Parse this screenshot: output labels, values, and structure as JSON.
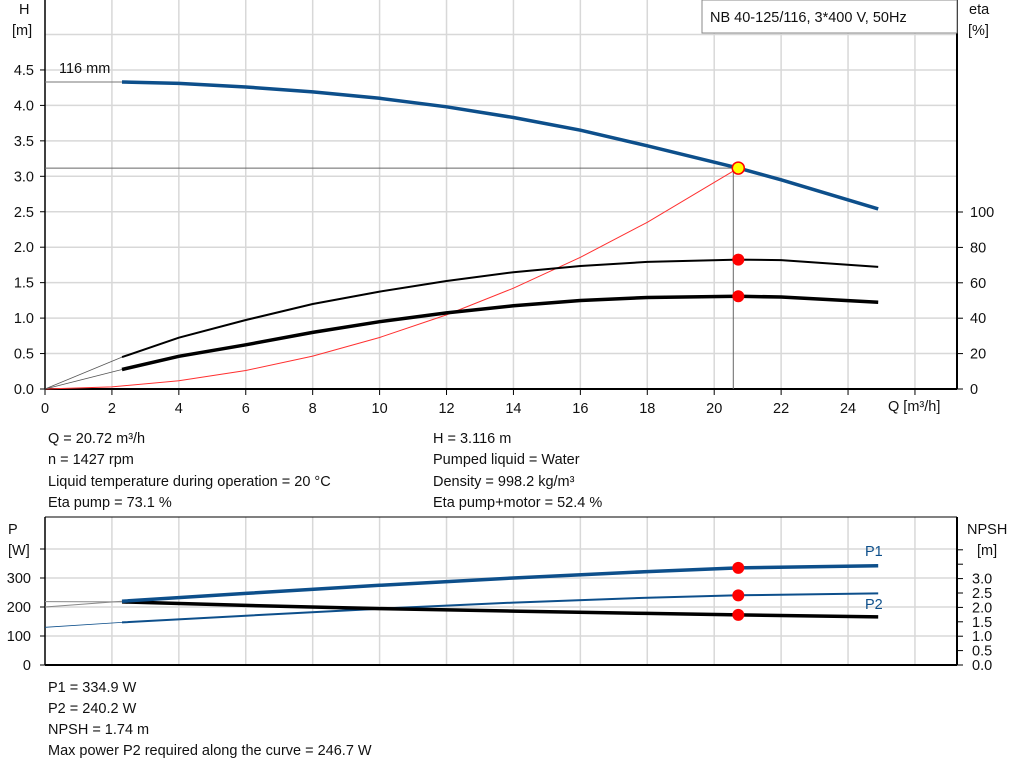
{
  "chart_data": [
    {
      "type": "line",
      "title": "NB 40-125/116, 3*400 V, 50Hz",
      "xlabel": "Q [m³/h]",
      "ylabel": [
        "H",
        "[m]"
      ],
      "y2label": [
        "eta",
        "[%]"
      ],
      "xlim": [
        0,
        27.25
      ],
      "ylim": [
        0,
        5.5
      ],
      "y2lim": [
        0,
        100
      ],
      "xticks": [
        "0",
        "2",
        "4",
        "6",
        "8",
        "10",
        "12",
        "14",
        "16",
        "18",
        "20",
        "22",
        "24"
      ],
      "yticks": [
        "0.0",
        "0.5",
        "1.0",
        "1.5",
        "2.0",
        "2.5",
        "3.0",
        "3.5",
        "4.0",
        "4.5"
      ],
      "y2ticks": [
        "0",
        "20",
        "40",
        "60",
        "80",
        "100"
      ],
      "grid": true,
      "curve_label": "116 mm",
      "series": [
        {
          "key": "H",
          "axis": "left",
          "color": "#0d4f8b",
          "x": [
            2.3,
            4,
            6,
            8,
            10,
            12,
            14,
            16,
            18,
            20.72,
            22,
            24.9
          ],
          "y": [
            4.33,
            4.31,
            4.26,
            4.19,
            4.1,
            3.98,
            3.83,
            3.65,
            3.43,
            3.116,
            2.95,
            2.54
          ],
          "extension_at_zero": 4.33
        },
        {
          "key": "eta_pump",
          "axis": "right",
          "color": "#000000",
          "x": [
            2.3,
            4,
            6,
            8,
            10,
            12,
            14,
            16,
            18,
            20.72,
            22,
            24.9
          ],
          "y": [
            18,
            29,
            39,
            48,
            55,
            61,
            66,
            69.5,
            71.8,
            73.1,
            72.8,
            69
          ]
        },
        {
          "key": "eta_pump_motor",
          "axis": "right",
          "color": "#000000",
          "x": [
            2.3,
            4,
            6,
            8,
            10,
            12,
            14,
            16,
            18,
            20.72,
            22,
            24.9
          ],
          "y": [
            11,
            18.5,
            25,
            32,
            38,
            43,
            47,
            50,
            51.7,
            52.4,
            52,
            49
          ]
        },
        {
          "key": "system_curve",
          "axis": "left",
          "color": "#ff3030",
          "x": [
            0,
            2,
            4,
            6,
            8,
            10,
            12,
            14,
            16,
            18,
            20.72
          ],
          "y": [
            0,
            0.029,
            0.116,
            0.261,
            0.464,
            0.726,
            1.045,
            1.422,
            1.857,
            2.351,
            3.116
          ]
        }
      ],
      "operating_point": {
        "Q": 20.72,
        "H": 3.116,
        "eta_pump": 73.1,
        "eta_pump_motor": 52.4
      }
    },
    {
      "type": "line",
      "ylabel": [
        "P",
        "[W]"
      ],
      "y2label": [
        "NPSH",
        "[m]"
      ],
      "xlim": [
        0,
        27.25
      ],
      "ylim": [
        0,
        500
      ],
      "y2lim": [
        0,
        5
      ],
      "yticks": [
        "0",
        "100",
        "200",
        "300"
      ],
      "y2ticks": [
        "0.0",
        "0.5",
        "1.0",
        "1.5",
        "2.0",
        "2.5",
        "3.0"
      ],
      "grid": true,
      "series": [
        {
          "name": "P1",
          "axis": "left",
          "color": "#0d4f8b",
          "x": [
            2.3,
            6,
            10,
            14,
            18,
            20.72,
            24.9
          ],
          "y": [
            220,
            247,
            275,
            300,
            322,
            334.9,
            342
          ],
          "extension_at_zero": 200
        },
        {
          "name": "P2",
          "axis": "left",
          "color": "#0d4f8b",
          "x": [
            2.3,
            6,
            10,
            14,
            18,
            20.72,
            24.9
          ],
          "y": [
            147,
            170,
            194,
            215,
            232,
            240.2,
            247
          ],
          "extension_at_zero": 130
        },
        {
          "key": "NPSH",
          "axis": "right",
          "color": "#000000",
          "x": [
            2.3,
            6,
            10,
            14,
            18,
            20.72,
            24.9
          ],
          "y": [
            2.19,
            2.07,
            1.96,
            1.87,
            1.79,
            1.74,
            1.67
          ],
          "extension_at_zero": 2.2
        }
      ],
      "operating_point": {
        "Q": 20.72,
        "P1": 334.9,
        "P2": 240.2,
        "NPSH": 1.74
      }
    }
  ],
  "info": {
    "left": [
      "Q = 20.72 m³/h",
      "n = 1427 rpm",
      "Liquid temperature during operation = 20 °C",
      "Eta pump = 73.1 %"
    ],
    "right": [
      "H = 3.116 m",
      "Pumped liquid = Water",
      "Density = 998.2 kg/m³",
      "Eta pump+motor = 52.4 %"
    ],
    "bottom": [
      "P1 = 334.9 W",
      "P2 = 240.2 W",
      "NPSH = 1.74 m",
      "Max power P2 required along the curve = 246.7 W"
    ]
  },
  "colors": {
    "grid": "#d8d8d8",
    "curve_blue": "#0d4f8b",
    "marker_red": "#ff0000",
    "op_yellow": "#ffff00"
  }
}
